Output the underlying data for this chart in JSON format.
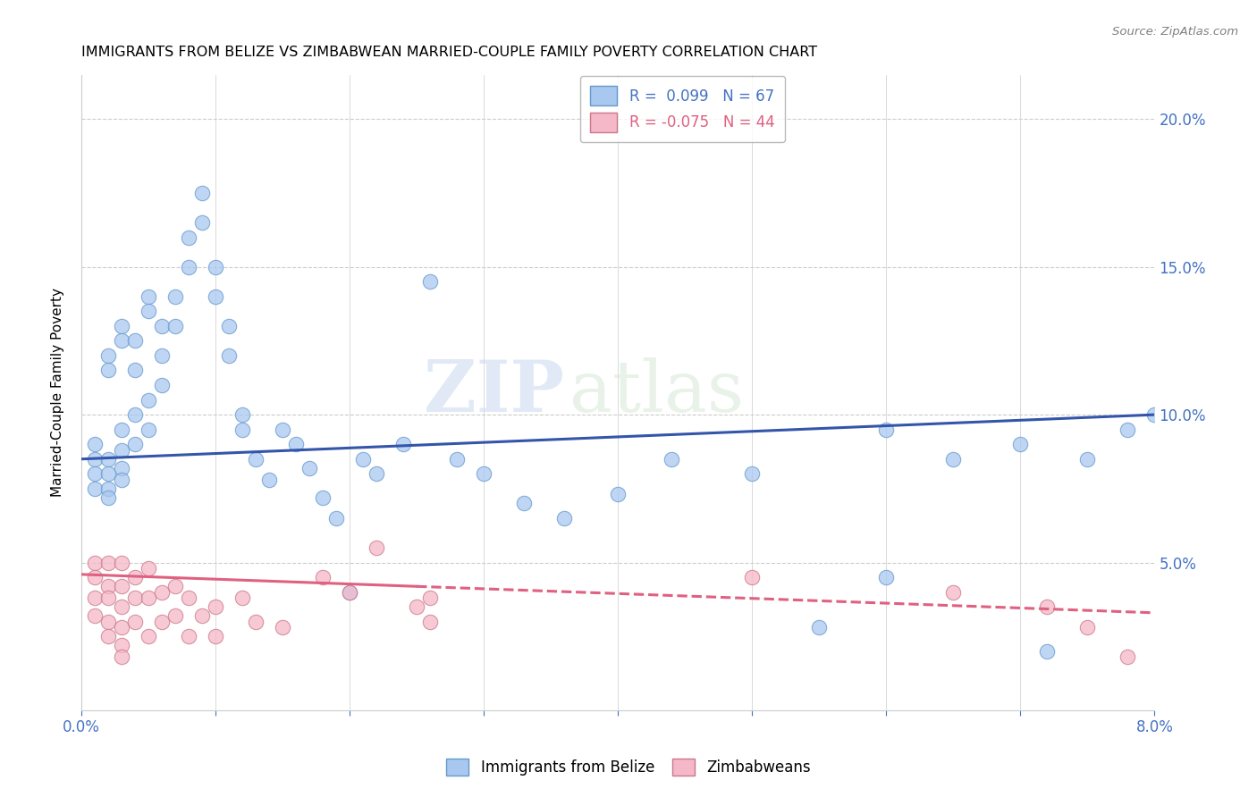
{
  "title": "IMMIGRANTS FROM BELIZE VS ZIMBABWEAN MARRIED-COUPLE FAMILY POVERTY CORRELATION CHART",
  "source": "Source: ZipAtlas.com",
  "ylabel": "Married-Couple Family Poverty",
  "ymin": 0.0,
  "ymax": 0.215,
  "xmin": 0.0,
  "xmax": 0.08,
  "watermark_zip": "ZIP",
  "watermark_atlas": "atlas",
  "belize_color": "#a8c8f0",
  "belize_edge": "#6699cc",
  "zimbabwe_color": "#f4b8c8",
  "zimbabwe_edge": "#cc7788",
  "trend_belize_color": "#3355aa",
  "trend_zimbabwe_color": "#e06080",
  "axis_color": "#4472c4",
  "grid_color": "#cccccc",
  "trend_belize_x0": 0.0,
  "trend_belize_y0": 0.085,
  "trend_belize_x1": 0.08,
  "trend_belize_y1": 0.1,
  "trend_zimbabwe_x0": 0.0,
  "trend_zimbabwe_y0": 0.046,
  "trend_zimbabwe_x1": 0.08,
  "trend_zimbabwe_y1": 0.033,
  "belize_x": [
    0.001,
    0.001,
    0.001,
    0.001,
    0.002,
    0.002,
    0.002,
    0.002,
    0.002,
    0.002,
    0.003,
    0.003,
    0.003,
    0.003,
    0.003,
    0.003,
    0.004,
    0.004,
    0.004,
    0.004,
    0.005,
    0.005,
    0.005,
    0.005,
    0.006,
    0.006,
    0.006,
    0.007,
    0.007,
    0.008,
    0.008,
    0.009,
    0.009,
    0.01,
    0.01,
    0.011,
    0.011,
    0.012,
    0.012,
    0.013,
    0.014,
    0.015,
    0.016,
    0.017,
    0.018,
    0.019,
    0.02,
    0.021,
    0.022,
    0.024,
    0.026,
    0.028,
    0.03,
    0.033,
    0.036,
    0.04,
    0.044,
    0.05,
    0.055,
    0.06,
    0.065,
    0.07,
    0.075,
    0.078,
    0.06,
    0.072,
    0.08
  ],
  "belize_y": [
    0.085,
    0.09,
    0.08,
    0.075,
    0.12,
    0.115,
    0.085,
    0.08,
    0.075,
    0.072,
    0.13,
    0.125,
    0.095,
    0.088,
    0.082,
    0.078,
    0.125,
    0.115,
    0.1,
    0.09,
    0.14,
    0.135,
    0.105,
    0.095,
    0.13,
    0.12,
    0.11,
    0.14,
    0.13,
    0.16,
    0.15,
    0.175,
    0.165,
    0.15,
    0.14,
    0.13,
    0.12,
    0.1,
    0.095,
    0.085,
    0.078,
    0.095,
    0.09,
    0.082,
    0.072,
    0.065,
    0.04,
    0.085,
    0.08,
    0.09,
    0.145,
    0.085,
    0.08,
    0.07,
    0.065,
    0.073,
    0.085,
    0.08,
    0.028,
    0.095,
    0.085,
    0.09,
    0.085,
    0.095,
    0.045,
    0.02,
    0.1
  ],
  "zimbabwe_x": [
    0.001,
    0.001,
    0.001,
    0.001,
    0.002,
    0.002,
    0.002,
    0.002,
    0.002,
    0.003,
    0.003,
    0.003,
    0.003,
    0.003,
    0.003,
    0.004,
    0.004,
    0.004,
    0.005,
    0.005,
    0.005,
    0.006,
    0.006,
    0.007,
    0.007,
    0.008,
    0.008,
    0.009,
    0.01,
    0.01,
    0.012,
    0.013,
    0.015,
    0.018,
    0.02,
    0.022,
    0.025,
    0.026,
    0.026,
    0.05,
    0.065,
    0.072,
    0.075,
    0.078
  ],
  "zimbabwe_y": [
    0.05,
    0.045,
    0.038,
    0.032,
    0.05,
    0.042,
    0.038,
    0.03,
    0.025,
    0.05,
    0.042,
    0.035,
    0.028,
    0.022,
    0.018,
    0.045,
    0.038,
    0.03,
    0.048,
    0.038,
    0.025,
    0.04,
    0.03,
    0.042,
    0.032,
    0.038,
    0.025,
    0.032,
    0.035,
    0.025,
    0.038,
    0.03,
    0.028,
    0.045,
    0.04,
    0.055,
    0.035,
    0.038,
    0.03,
    0.045,
    0.04,
    0.035,
    0.028,
    0.018
  ]
}
